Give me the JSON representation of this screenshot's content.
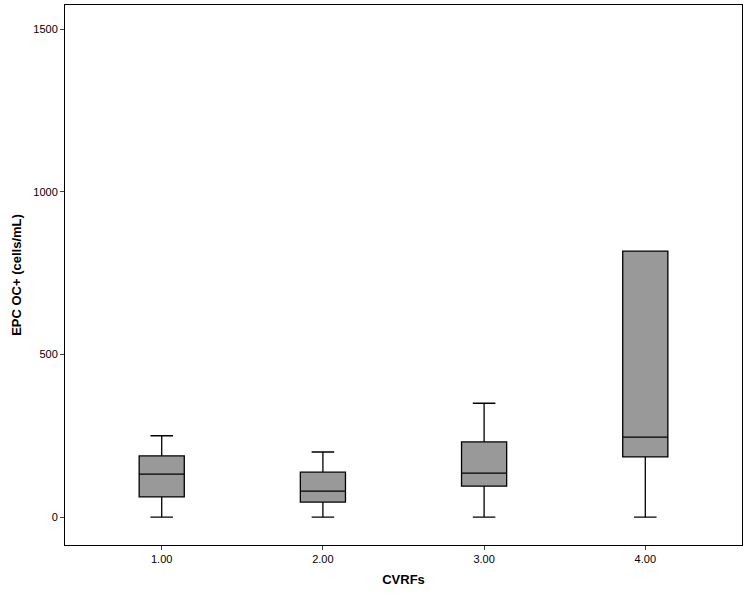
{
  "chart_data": {
    "type": "box",
    "x_label": "CVRFs",
    "y_label": "EPC OC+ (cells/mL)",
    "categories": [
      "1.00",
      "2.00",
      "3.00",
      "4.00"
    ],
    "min": [
      0,
      0,
      0,
      0
    ],
    "q1": [
      62,
      46,
      95,
      185
    ],
    "median": [
      132,
      80,
      135,
      246
    ],
    "q3": [
      188,
      138,
      231,
      818
    ],
    "max": [
      250,
      200,
      350,
      818
    ],
    "color": "#999999",
    "ylim": [
      -86,
      1575
    ],
    "yticks": [
      0,
      500,
      1000,
      1500
    ],
    "grid": false
  }
}
